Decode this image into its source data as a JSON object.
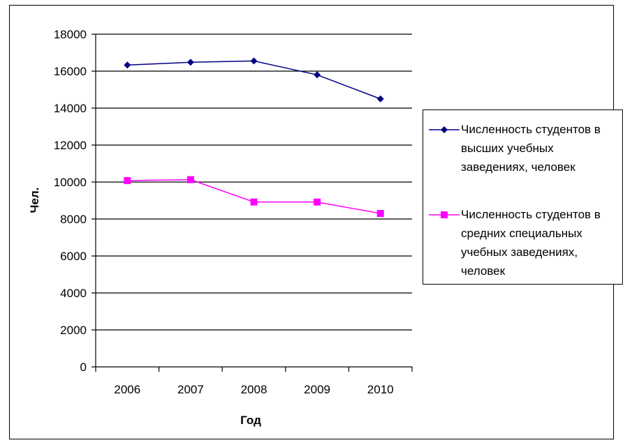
{
  "chart_data": {
    "type": "line",
    "x": [
      "2006",
      "2007",
      "2008",
      "2009",
      "2010"
    ],
    "y_ticks": [
      0,
      2000,
      4000,
      6000,
      8000,
      10000,
      12000,
      14000,
      16000,
      18000
    ],
    "ylim": [
      0,
      18000
    ],
    "xlabel": "Год",
    "ylabel": "Чел.",
    "grid": "horizontal",
    "legend_position": "right",
    "series": [
      {
        "name": "Численность студентов в высших учебных заведениях, человек",
        "values": [
          16330,
          16480,
          16550,
          15800,
          14500
        ],
        "color": "#000080",
        "marker": "diamond"
      },
      {
        "name": "Численность студентов в средних специальных учебных заведениях, человек",
        "values": [
          10080,
          10130,
          8920,
          8920,
          8300
        ],
        "color": "#FF00FF",
        "marker": "square"
      }
    ]
  }
}
